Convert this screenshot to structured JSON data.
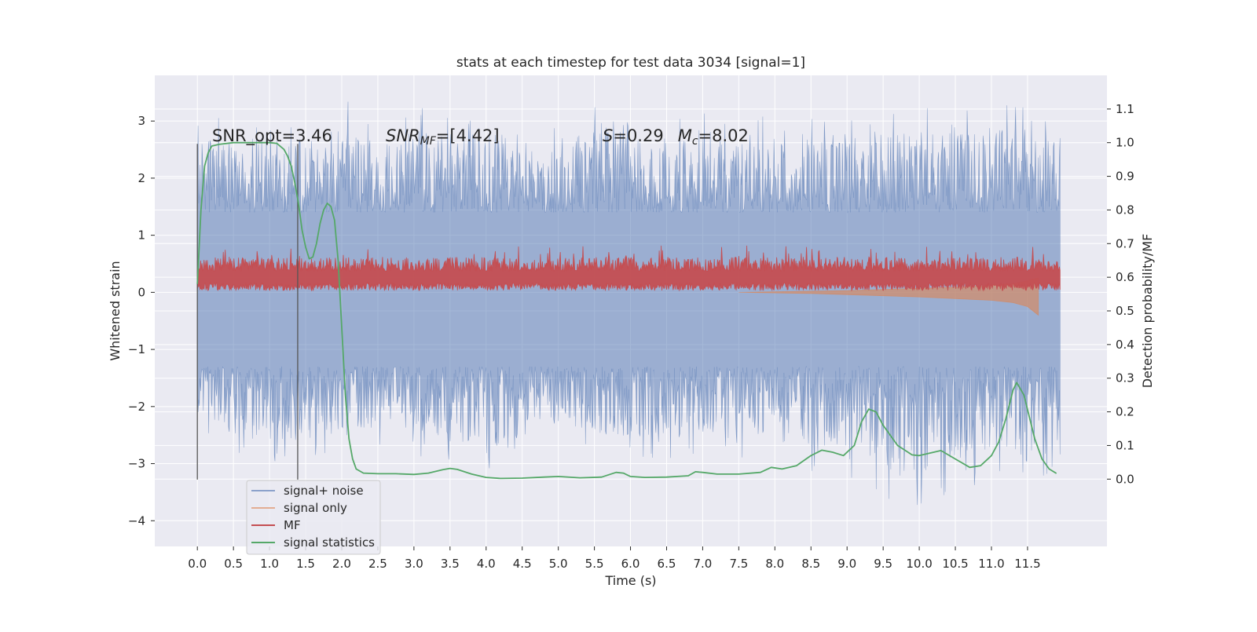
{
  "chart_data": {
    "type": "line",
    "title": "stats at each timestep for test data 3034 [signal=1]",
    "xlabel": "Time (s)",
    "ylabel": "Whitened strain",
    "ylabel_right": "Detection probability/MF",
    "xlim": [
      -0.59,
      12.6
    ],
    "ylim": [
      -4.45,
      3.8
    ],
    "ylim_right": [
      -0.2,
      1.2
    ],
    "x_ticks": [
      0.0,
      0.5,
      1.0,
      1.5,
      2.0,
      2.5,
      3.0,
      3.5,
      4.0,
      4.5,
      5.0,
      5.5,
      6.0,
      6.5,
      7.0,
      7.5,
      8.0,
      8.5,
      9.0,
      9.5,
      10.0,
      10.5,
      11.0,
      11.5
    ],
    "x_tick_labels": [
      "0.0",
      "0.5",
      "1.0",
      "1.5",
      "2.0",
      "2.5",
      "3.0",
      "3.5",
      "4.0",
      "4.5",
      "5.0",
      "5.5",
      "6.0",
      "6.5",
      "7.0",
      "7.5",
      "8.0",
      "8.5",
      "9.0",
      "9.5",
      "10.0",
      "10.5",
      "11.0",
      "11.5"
    ],
    "y_ticks": [
      -4,
      -3,
      -2,
      -1,
      0,
      1,
      2,
      3
    ],
    "y_tick_labels": [
      "−4",
      "−3",
      "−2",
      "−1",
      "0",
      "1",
      "2",
      "3"
    ],
    "y_right_ticks": [
      0.0,
      0.1,
      0.2,
      0.3,
      0.4,
      0.5,
      0.6,
      0.7,
      0.8,
      0.9,
      1.0,
      1.1
    ],
    "y_right_tick_labels": [
      "0.0",
      "0.1",
      "0.2",
      "0.3",
      "0.4",
      "0.5",
      "0.6",
      "0.7",
      "0.8",
      "0.9",
      "1.0",
      "1.1"
    ],
    "grid": true,
    "legend_position": "lower-left",
    "annotations": {
      "snr_opt": "SNR_opt=3.46",
      "snr_mf_main": "SNR",
      "snr_mf_sub": "MF",
      "snr_mf_value": "=[4.42]",
      "s_symbol": "S",
      "s_value": "=0.29",
      "mc_symbol": "M",
      "mc_sub": "c",
      "mc_value": "=8.02"
    },
    "vertical_lines_x": [
      0.0,
      1.39
    ],
    "series": [
      {
        "name": "signal+ noise",
        "color": "#4c72b0",
        "x_range": [
          0.0,
          11.95
        ],
        "envelope_max": [
          3.4,
          2.9,
          3.3,
          3.1,
          3.35,
          3.1,
          3.4,
          3.2,
          3.3,
          3.1,
          3.2,
          3.35,
          3.25,
          3.1,
          3.2,
          3.3,
          3.1,
          3.3,
          3.2,
          3.3,
          3.2,
          3.3,
          3.35,
          3.2
        ],
        "envelope_min": [
          -2.4,
          -2.9,
          -3.15,
          -3.05,
          -2.9,
          -2.7,
          -2.9,
          -3.1,
          -3.1,
          -2.7,
          -2.8,
          -2.9,
          -3.1,
          -2.9,
          -2.8,
          -3.0,
          -3.1,
          -3.2,
          -3.4,
          -4.1,
          -3.5,
          -3.4,
          -3.2,
          -3.6
        ]
      },
      {
        "name": "signal only",
        "color": "#dd8452",
        "x": [
          7.5,
          8.0,
          8.5,
          9.0,
          9.5,
          10.0,
          10.5,
          11.0,
          11.3,
          11.5,
          11.65
        ],
        "upper": [
          0.0,
          0.01,
          0.02,
          0.03,
          0.05,
          0.07,
          0.09,
          0.12,
          0.15,
          0.2,
          0.25
        ],
        "lower": [
          0.0,
          -0.01,
          -0.02,
          -0.04,
          -0.06,
          -0.08,
          -0.11,
          -0.14,
          -0.18,
          -0.25,
          -0.4
        ]
      },
      {
        "name": "MF",
        "color": "#c44e52",
        "x_range": [
          0.0,
          11.95
        ],
        "baseline": 0.25,
        "envelope_max": 0.95,
        "envelope_min": 0.0
      },
      {
        "name": "signal statistics",
        "color": "#55a868",
        "axis": "right",
        "x": [
          0.0,
          0.05,
          0.1,
          0.15,
          0.2,
          0.3,
          0.5,
          0.8,
          1.0,
          1.1,
          1.2,
          1.25,
          1.3,
          1.35,
          1.4,
          1.45,
          1.5,
          1.55,
          1.6,
          1.65,
          1.7,
          1.75,
          1.8,
          1.85,
          1.9,
          1.95,
          2.0,
          2.05,
          2.1,
          2.15,
          2.2,
          2.3,
          2.5,
          2.75,
          3.0,
          3.2,
          3.4,
          3.5,
          3.6,
          3.8,
          4.0,
          4.2,
          4.5,
          4.8,
          5.0,
          5.3,
          5.6,
          5.8,
          5.9,
          6.0,
          6.2,
          6.5,
          6.8,
          6.9,
          7.0,
          7.2,
          7.5,
          7.8,
          7.95,
          8.1,
          8.3,
          8.5,
          8.65,
          8.8,
          8.95,
          9.1,
          9.2,
          9.3,
          9.4,
          9.5,
          9.7,
          9.9,
          10.0,
          10.1,
          10.3,
          10.5,
          10.7,
          10.85,
          11.0,
          11.1,
          11.2,
          11.3,
          11.35,
          11.45,
          11.6,
          11.7,
          11.8,
          11.9
        ],
        "y": [
          0.58,
          0.8,
          0.93,
          0.97,
          0.99,
          0.995,
          1.0,
          1.0,
          1.0,
          0.998,
          0.98,
          0.96,
          0.93,
          0.88,
          0.82,
          0.74,
          0.69,
          0.655,
          0.66,
          0.7,
          0.76,
          0.8,
          0.82,
          0.81,
          0.77,
          0.65,
          0.45,
          0.25,
          0.12,
          0.06,
          0.03,
          0.018,
          0.016,
          0.016,
          0.014,
          0.018,
          0.028,
          0.032,
          0.029,
          0.015,
          0.005,
          0.002,
          0.003,
          0.006,
          0.008,
          0.004,
          0.006,
          0.02,
          0.018,
          0.008,
          0.005,
          0.006,
          0.01,
          0.022,
          0.02,
          0.015,
          0.015,
          0.02,
          0.035,
          0.03,
          0.04,
          0.07,
          0.086,
          0.08,
          0.07,
          0.1,
          0.17,
          0.208,
          0.2,
          0.16,
          0.1,
          0.072,
          0.07,
          0.075,
          0.085,
          0.06,
          0.035,
          0.04,
          0.07,
          0.11,
          0.18,
          0.265,
          0.287,
          0.25,
          0.12,
          0.06,
          0.03,
          0.017
        ]
      }
    ]
  }
}
